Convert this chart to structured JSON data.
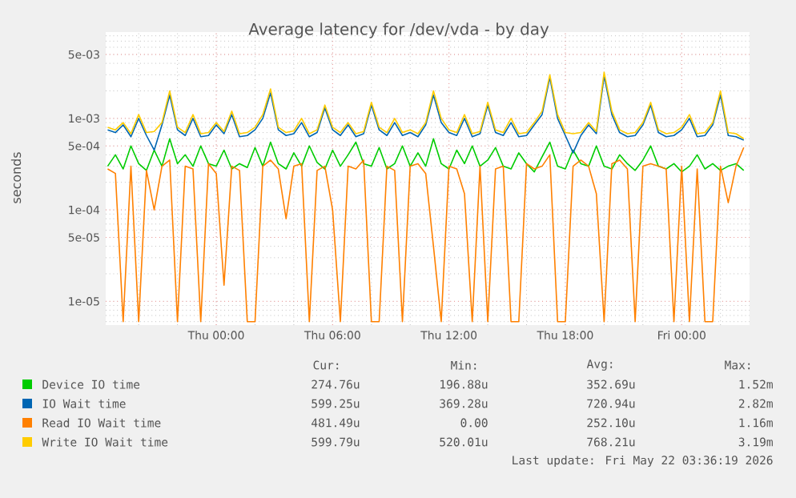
{
  "chart_data": {
    "type": "line",
    "title": "Average latency for /dev/vda - by day",
    "ylabel": "seconds",
    "x": [
      "2026-05-20T18:24",
      "2026-05-20T18:48",
      "2026-05-20T19:12",
      "2026-05-20T19:36",
      "2026-05-20T20:00",
      "2026-05-20T20:24",
      "2026-05-20T20:48",
      "2026-05-20T21:12",
      "2026-05-20T21:36",
      "2026-05-20T22:00",
      "2026-05-20T22:24",
      "2026-05-20T22:48",
      "2026-05-20T23:12",
      "2026-05-20T23:36",
      "2026-05-21T00:00",
      "2026-05-21T00:24",
      "2026-05-21T00:48",
      "2026-05-21T01:12",
      "2026-05-21T01:36",
      "2026-05-21T02:00",
      "2026-05-21T02:24",
      "2026-05-21T02:48",
      "2026-05-21T03:12",
      "2026-05-21T03:36",
      "2026-05-21T04:00",
      "2026-05-21T04:24",
      "2026-05-21T04:48",
      "2026-05-21T05:12",
      "2026-05-21T05:36",
      "2026-05-21T06:00",
      "2026-05-21T06:24",
      "2026-05-21T06:48",
      "2026-05-21T07:12",
      "2026-05-21T07:36",
      "2026-05-21T08:00",
      "2026-05-21T08:24",
      "2026-05-21T08:48",
      "2026-05-21T09:12",
      "2026-05-21T09:36",
      "2026-05-21T10:00",
      "2026-05-21T10:24",
      "2026-05-21T10:48",
      "2026-05-21T11:12",
      "2026-05-21T11:36",
      "2026-05-21T12:00",
      "2026-05-21T12:24",
      "2026-05-21T12:48",
      "2026-05-21T13:12",
      "2026-05-21T13:36",
      "2026-05-21T14:00",
      "2026-05-21T14:24",
      "2026-05-21T14:48",
      "2026-05-21T15:12",
      "2026-05-21T15:36",
      "2026-05-21T16:00",
      "2026-05-21T16:24",
      "2026-05-21T16:48",
      "2026-05-21T17:12",
      "2026-05-21T17:36",
      "2026-05-21T18:00",
      "2026-05-21T18:24",
      "2026-05-21T18:48",
      "2026-05-21T19:12",
      "2026-05-21T19:36",
      "2026-05-21T20:00",
      "2026-05-21T20:24",
      "2026-05-21T20:48",
      "2026-05-21T21:12",
      "2026-05-21T21:36",
      "2026-05-21T22:00",
      "2026-05-21T22:24",
      "2026-05-21T22:48",
      "2026-05-21T23:12",
      "2026-05-21T23:36",
      "2026-05-22T00:00",
      "2026-05-22T00:24",
      "2026-05-22T00:48",
      "2026-05-22T01:12",
      "2026-05-22T01:36",
      "2026-05-22T02:00",
      "2026-05-22T02:24",
      "2026-05-22T02:48",
      "2026-05-22T03:12"
    ],
    "series": [
      {
        "name": "Device IO time",
        "color": "#00cc00",
        "values": [
          0.0003,
          0.0004,
          0.00028,
          0.0005,
          0.00032,
          0.00027,
          0.00045,
          0.0003,
          0.0006,
          0.00032,
          0.0004,
          0.0003,
          0.0005,
          0.00032,
          0.0003,
          0.00045,
          0.00028,
          0.00032,
          0.00029,
          0.00048,
          0.0003,
          0.00055,
          0.00032,
          0.00028,
          0.00042,
          0.0003,
          0.0005,
          0.00033,
          0.00028,
          0.00045,
          0.0003,
          0.0004,
          0.00055,
          0.00032,
          0.0003,
          0.00048,
          0.00028,
          0.00032,
          0.0005,
          0.0003,
          0.00042,
          0.0003,
          0.0006,
          0.00032,
          0.00028,
          0.00045,
          0.00032,
          0.0005,
          0.0003,
          0.00035,
          0.00048,
          0.0003,
          0.00028,
          0.00042,
          0.00032,
          0.00026,
          0.00038,
          0.00055,
          0.0003,
          0.00028,
          0.00045,
          0.00032,
          0.0003,
          0.0005,
          0.0003,
          0.00028,
          0.0004,
          0.00032,
          0.00027,
          0.00035,
          0.0005,
          0.0003,
          0.00028,
          0.00032,
          0.00026,
          0.0003,
          0.0004,
          0.00028,
          0.00032,
          0.00027,
          0.0003,
          0.00032,
          0.00027
        ]
      },
      {
        "name": "IO Wait time",
        "color": "#0066b3",
        "values": [
          0.00075,
          0.0007,
          0.00085,
          0.00063,
          0.001,
          0.00065,
          0.00045,
          0.00085,
          0.0018,
          0.00075,
          0.00065,
          0.001,
          0.00063,
          0.00065,
          0.00085,
          0.00068,
          0.0011,
          0.00063,
          0.00065,
          0.00075,
          0.001,
          0.0019,
          0.00075,
          0.00065,
          0.00068,
          0.0009,
          0.00063,
          0.0007,
          0.0013,
          0.00075,
          0.00065,
          0.00085,
          0.00063,
          0.00068,
          0.0014,
          0.00075,
          0.00065,
          0.0009,
          0.00065,
          0.0007,
          0.00063,
          0.00085,
          0.0018,
          0.0009,
          0.0007,
          0.00065,
          0.001,
          0.00063,
          0.00068,
          0.0014,
          0.0007,
          0.00065,
          0.0009,
          0.00063,
          0.00065,
          0.00085,
          0.0011,
          0.0028,
          0.001,
          0.00065,
          0.00042,
          0.00065,
          0.00085,
          0.00068,
          0.0029,
          0.0011,
          0.0007,
          0.00063,
          0.00065,
          0.00085,
          0.0014,
          0.0007,
          0.00063,
          0.00065,
          0.00075,
          0.001,
          0.00063,
          0.00065,
          0.00085,
          0.0018,
          0.00065,
          0.00063,
          0.00058
        ]
      },
      {
        "name": "Read IO Wait time",
        "color": "#ff8000",
        "values": [
          0.00028,
          0.00025,
          6e-06,
          0.0003,
          6e-06,
          0.00027,
          0.0001,
          0.0003,
          0.00035,
          6e-06,
          0.0003,
          0.00028,
          6e-06,
          0.00032,
          0.00025,
          1.5e-05,
          0.0003,
          0.00027,
          6e-06,
          6e-06,
          0.0003,
          0.00035,
          0.00028,
          8e-05,
          0.0003,
          0.00032,
          6e-06,
          0.00027,
          0.0003,
          0.0001,
          6e-06,
          0.0003,
          0.00028,
          0.00035,
          6e-06,
          6e-06,
          0.0003,
          0.00027,
          6e-06,
          0.0003,
          0.00032,
          0.00025,
          4e-05,
          6e-06,
          0.0003,
          0.00028,
          0.00015,
          6e-06,
          0.0003,
          6e-06,
          0.00028,
          0.0003,
          6e-06,
          6e-06,
          0.00032,
          0.00028,
          0.0003,
          0.0004,
          6e-06,
          6e-06,
          0.0003,
          0.00035,
          0.0003,
          0.00015,
          6e-06,
          0.00032,
          0.00035,
          0.00028,
          6e-06,
          0.0003,
          0.00032,
          0.0003,
          0.00028,
          6e-06,
          0.0003,
          6e-06,
          0.00028,
          6e-06,
          6e-06,
          0.0003,
          0.00012,
          0.0003,
          0.00048
        ]
      },
      {
        "name": "Write IO Wait time",
        "color": "#ffcc00",
        "values": [
          0.0008,
          0.00075,
          0.0009,
          0.00068,
          0.0011,
          0.0007,
          0.00072,
          0.0009,
          0.002,
          0.0008,
          0.0007,
          0.0011,
          0.00068,
          0.0007,
          0.0009,
          0.00072,
          0.0012,
          0.00068,
          0.0007,
          0.0008,
          0.0011,
          0.0021,
          0.0008,
          0.0007,
          0.00073,
          0.001,
          0.00068,
          0.00075,
          0.0014,
          0.0008,
          0.0007,
          0.0009,
          0.00068,
          0.00072,
          0.0015,
          0.0008,
          0.0007,
          0.001,
          0.0007,
          0.00075,
          0.00068,
          0.0009,
          0.002,
          0.001,
          0.00075,
          0.0007,
          0.0011,
          0.00068,
          0.00072,
          0.0015,
          0.00075,
          0.0007,
          0.001,
          0.00068,
          0.0007,
          0.0009,
          0.0012,
          0.003,
          0.0011,
          0.0007,
          0.00068,
          0.0007,
          0.0009,
          0.00072,
          0.0032,
          0.0012,
          0.00075,
          0.00068,
          0.0007,
          0.0009,
          0.0015,
          0.00075,
          0.00068,
          0.0007,
          0.0008,
          0.0011,
          0.00068,
          0.0007,
          0.0009,
          0.002,
          0.0007,
          0.00068,
          0.0006
        ]
      }
    ],
    "xlim": [
      "2026-05-20T18:18",
      "2026-05-22T03:30"
    ],
    "xticks": [
      {
        "value": "2026-05-21T00:00",
        "label": "Thu 00:00"
      },
      {
        "value": "2026-05-21T06:00",
        "label": "Thu 06:00"
      },
      {
        "value": "2026-05-21T12:00",
        "label": "Thu 12:00"
      },
      {
        "value": "2026-05-21T18:00",
        "label": "Thu 18:00"
      },
      {
        "value": "2026-05-22T00:00",
        "label": "Fri 00:00"
      }
    ],
    "ylim": [
      5.5e-06,
      0.0088
    ],
    "yticks": [
      {
        "value": 1e-05,
        "label": "1e-05"
      },
      {
        "value": 5e-05,
        "label": "5e-05"
      },
      {
        "value": 0.0001,
        "label": "1e-04"
      },
      {
        "value": 0.0005,
        "label": "5e-04"
      },
      {
        "value": 0.001,
        "label": "1e-03"
      },
      {
        "value": 0.005,
        "label": "5e-03"
      }
    ],
    "log": "y",
    "grid": true,
    "legend": "bottom",
    "marker": "none",
    "line_style": "solid",
    "annotations": [
      "Cur:",
      "Min:",
      "Avg:",
      "Max:",
      "274.76u",
      "196.88u",
      "352.69u",
      "1.52m",
      "599.25u",
      "369.28u",
      "720.94u",
      "2.82m",
      "481.49u",
      "0.00",
      "252.10u",
      "1.16m",
      "599.79u",
      "520.01u",
      "768.21u",
      "3.19m",
      "Last update: Fri May 22 03:36:19 2026"
    ]
  }
}
